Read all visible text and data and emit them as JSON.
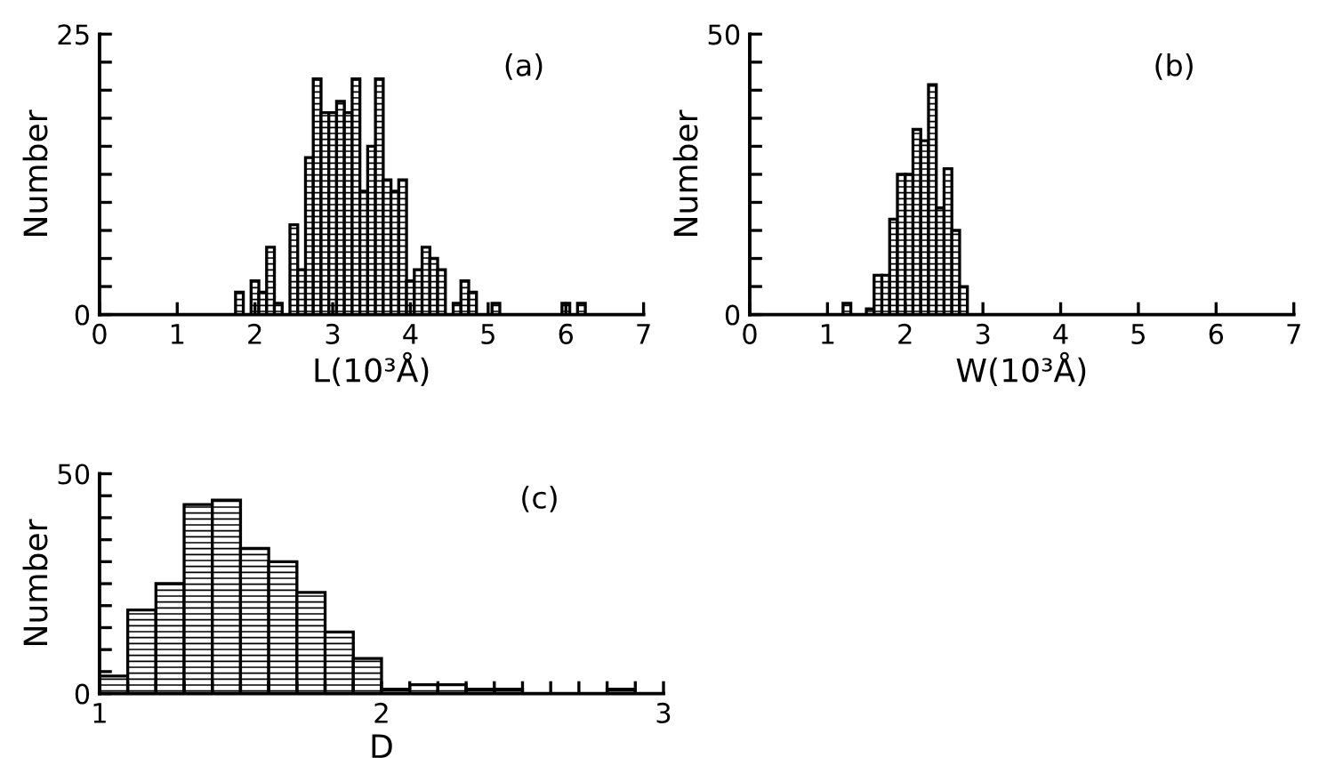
{
  "chart_data": [
    {
      "type": "histogram",
      "xlabel": "L(10³Å)",
      "ylabel": "Number",
      "annotations": [
        "(a)"
      ],
      "color": "#000000",
      "grid": false,
      "bins": [
        1.75,
        1.85,
        1.95,
        2.05,
        2.15,
        2.25,
        2.35,
        2.45,
        2.55,
        2.65,
        2.75,
        2.85,
        2.95,
        3.05,
        3.15,
        3.25,
        3.35,
        3.45,
        3.55,
        3.65,
        3.75,
        3.85,
        3.95,
        4.05,
        4.15,
        4.25,
        4.35,
        4.45,
        4.55,
        4.65,
        4.75,
        4.85,
        4.95,
        5.05,
        5.15,
        5.25,
        5.35,
        5.45,
        5.55,
        5.65,
        5.75,
        5.85,
        5.95,
        6.05,
        6.15,
        6.25
      ],
      "values": [
        2,
        0,
        3,
        2,
        6,
        1,
        0,
        8,
        4,
        14,
        21,
        18,
        18,
        19,
        18,
        21,
        11,
        15,
        21,
        12,
        11,
        12,
        3,
        4,
        6,
        5,
        4,
        0,
        1,
        3,
        2,
        0,
        0,
        1,
        0,
        0,
        0,
        0,
        0,
        0,
        0,
        0,
        1,
        0,
        1
      ],
      "xlim": [
        0,
        7
      ],
      "xticks": [
        0,
        1,
        2,
        3,
        4,
        5,
        6,
        7
      ],
      "ylim": [
        0,
        25
      ],
      "yticks": [
        0,
        {
          "value": 2.5,
          "label": null
        },
        {
          "value": 5,
          "label": null
        },
        {
          "value": 7.5,
          "label": null
        },
        {
          "value": 10,
          "label": null
        },
        {
          "value": 12.5,
          "label": null
        },
        {
          "value": 15,
          "label": null
        },
        {
          "value": 17.5,
          "label": null
        },
        {
          "value": 20,
          "label": null
        },
        {
          "value": 22.5,
          "label": null
        },
        25
      ]
    },
    {
      "type": "histogram",
      "xlabel": "W(10³Å)",
      "ylabel": "Number",
      "annotations": [
        "(b)"
      ],
      "color": "#000000",
      "grid": false,
      "bins": [
        1.2,
        1.3,
        1.4,
        1.5,
        1.6,
        1.7,
        1.8,
        1.9,
        2.0,
        2.1,
        2.2,
        2.3,
        2.4,
        2.5,
        2.6,
        2.7,
        2.8
      ],
      "values": [
        2,
        0,
        0,
        1,
        7,
        7,
        17,
        25,
        25,
        33,
        31,
        41,
        19,
        26,
        15,
        5
      ],
      "xlim": [
        0,
        7
      ],
      "xticks": [
        0,
        1,
        2,
        3,
        4,
        5,
        6,
        7
      ],
      "ylim": [
        0,
        50
      ],
      "yticks": [
        0,
        {
          "value": 5,
          "label": null
        },
        {
          "value": 10,
          "label": null
        },
        {
          "value": 15,
          "label": null
        },
        {
          "value": 20,
          "label": null
        },
        {
          "value": 25,
          "label": null
        },
        {
          "value": 30,
          "label": null
        },
        {
          "value": 35,
          "label": null
        },
        {
          "value": 40,
          "label": null
        },
        {
          "value": 45,
          "label": null
        },
        50
      ]
    },
    {
      "type": "histogram",
      "xlabel": "D",
      "ylabel": "Number",
      "annotations": [
        "(c)"
      ],
      "color": "#000000",
      "grid": false,
      "bins": [
        1.0,
        1.1,
        1.2,
        1.3,
        1.4,
        1.5,
        1.6,
        1.7,
        1.8,
        1.9,
        2.0,
        2.1,
        2.2,
        2.3,
        2.4,
        2.5,
        2.6,
        2.7,
        2.8,
        2.9
      ],
      "values": [
        4,
        19,
        25,
        43,
        44,
        33,
        30,
        23,
        14,
        8,
        1,
        2,
        2,
        1,
        1,
        0,
        0,
        0,
        1
      ],
      "xlim": [
        1,
        3
      ],
      "xticks": [
        1,
        {
          "value": 1.1,
          "label": null
        },
        {
          "value": 1.2,
          "label": null
        },
        {
          "value": 1.3,
          "label": null
        },
        {
          "value": 1.4,
          "label": null
        },
        {
          "value": 1.5,
          "label": null
        },
        {
          "value": 1.6,
          "label": null
        },
        {
          "value": 1.7,
          "label": null
        },
        {
          "value": 1.8,
          "label": null
        },
        {
          "value": 1.9,
          "label": null
        },
        2,
        {
          "value": 2.1,
          "label": null
        },
        {
          "value": 2.2,
          "label": null
        },
        {
          "value": 2.3,
          "label": null
        },
        {
          "value": 2.4,
          "label": null
        },
        {
          "value": 2.5,
          "label": null
        },
        {
          "value": 2.6,
          "label": null
        },
        {
          "value": 2.7,
          "label": null
        },
        {
          "value": 2.8,
          "label": null
        },
        {
          "value": 2.9,
          "label": null
        },
        3
      ],
      "ylim": [
        0,
        50
      ],
      "yticks": [
        0,
        {
          "value": 5,
          "label": null
        },
        {
          "value": 10,
          "label": null
        },
        {
          "value": 15,
          "label": null
        },
        {
          "value": 20,
          "label": null
        },
        {
          "value": 25,
          "label": null
        },
        {
          "value": 30,
          "label": null
        },
        {
          "value": 35,
          "label": null
        },
        {
          "value": 40,
          "label": null
        },
        {
          "value": 45,
          "label": null
        },
        50
      ]
    }
  ]
}
